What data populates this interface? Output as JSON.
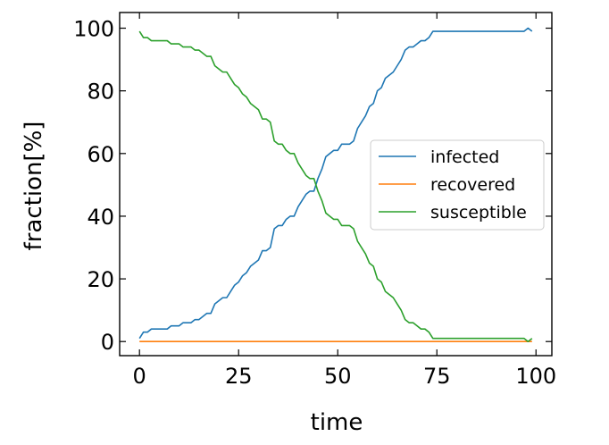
{
  "chart_data": {
    "type": "line",
    "xlabel": "time",
    "ylabel": "fraction[%]",
    "xlim": [
      -5,
      104
    ],
    "ylim": [
      -4.5,
      105
    ],
    "xticks": [
      0,
      25,
      50,
      75,
      100
    ],
    "yticks": [
      0,
      20,
      40,
      60,
      80,
      100
    ],
    "legend_position": "center-right",
    "grid": false,
    "colors": {
      "infected": "#1f77b4",
      "recovered": "#ff7f0e",
      "susceptible": "#2ca02c"
    },
    "series": [
      {
        "name": "infected",
        "x": [
          0,
          1,
          2,
          3,
          4,
          5,
          6,
          7,
          8,
          9,
          10,
          11,
          12,
          13,
          14,
          15,
          16,
          17,
          18,
          19,
          20,
          21,
          22,
          23,
          24,
          25,
          26,
          27,
          28,
          29,
          30,
          31,
          32,
          33,
          34,
          35,
          36,
          37,
          38,
          39,
          40,
          41,
          42,
          43,
          44,
          45,
          46,
          47,
          48,
          49,
          50,
          51,
          52,
          53,
          54,
          55,
          56,
          57,
          58,
          59,
          60,
          61,
          62,
          63,
          64,
          65,
          66,
          67,
          68,
          69,
          70,
          71,
          72,
          73,
          74,
          75,
          76,
          77,
          78,
          79,
          80,
          81,
          82,
          83,
          84,
          85,
          86,
          87,
          88,
          89,
          90,
          91,
          92,
          93,
          94,
          95,
          96,
          97,
          98,
          99
        ],
        "values": [
          1,
          3,
          3,
          4,
          4,
          4,
          4,
          4,
          5,
          5,
          5,
          6,
          6,
          6,
          7,
          7,
          8,
          9,
          9,
          12,
          13,
          14,
          14,
          16,
          18,
          19,
          21,
          22,
          24,
          25,
          26,
          29,
          29,
          30,
          36,
          37,
          37,
          39,
          40,
          40,
          43,
          45,
          47,
          48,
          48,
          52,
          55,
          59,
          60,
          61,
          61,
          63,
          63,
          63,
          64,
          68,
          70,
          72,
          75,
          76,
          80,
          81,
          84,
          85,
          86,
          88,
          90,
          93,
          94,
          94,
          95,
          96,
          96,
          97,
          99,
          99,
          99,
          99,
          99,
          99,
          99,
          99,
          99,
          99,
          99,
          99,
          99,
          99,
          99,
          99,
          99,
          99,
          99,
          99,
          99,
          99,
          99,
          99,
          100,
          99
        ]
      },
      {
        "name": "recovered",
        "x": [
          0,
          99
        ],
        "values": [
          0,
          0
        ]
      },
      {
        "name": "susceptible",
        "x": [
          0,
          1,
          2,
          3,
          4,
          5,
          6,
          7,
          8,
          9,
          10,
          11,
          12,
          13,
          14,
          15,
          16,
          17,
          18,
          19,
          20,
          21,
          22,
          23,
          24,
          25,
          26,
          27,
          28,
          29,
          30,
          31,
          32,
          33,
          34,
          35,
          36,
          37,
          38,
          39,
          40,
          41,
          42,
          43,
          44,
          45,
          46,
          47,
          48,
          49,
          50,
          51,
          52,
          53,
          54,
          55,
          56,
          57,
          58,
          59,
          60,
          61,
          62,
          63,
          64,
          65,
          66,
          67,
          68,
          69,
          70,
          71,
          72,
          73,
          74,
          75,
          76,
          77,
          78,
          79,
          80,
          81,
          82,
          83,
          84,
          85,
          86,
          87,
          88,
          89,
          90,
          91,
          92,
          93,
          94,
          95,
          96,
          97,
          98,
          99
        ],
        "values": [
          99,
          97,
          97,
          96,
          96,
          96,
          96,
          96,
          95,
          95,
          95,
          94,
          94,
          94,
          93,
          93,
          92,
          91,
          91,
          88,
          87,
          86,
          86,
          84,
          82,
          81,
          79,
          78,
          76,
          75,
          74,
          71,
          71,
          70,
          64,
          63,
          63,
          61,
          60,
          60,
          57,
          55,
          53,
          52,
          52,
          48,
          45,
          41,
          40,
          39,
          39,
          37,
          37,
          37,
          36,
          32,
          30,
          28,
          25,
          24,
          20,
          19,
          16,
          15,
          14,
          12,
          10,
          7,
          6,
          6,
          5,
          4,
          4,
          3,
          1,
          1,
          1,
          1,
          1,
          1,
          1,
          1,
          1,
          1,
          1,
          1,
          1,
          1,
          1,
          1,
          1,
          1,
          1,
          1,
          1,
          1,
          1,
          1,
          0,
          1
        ]
      }
    ]
  }
}
